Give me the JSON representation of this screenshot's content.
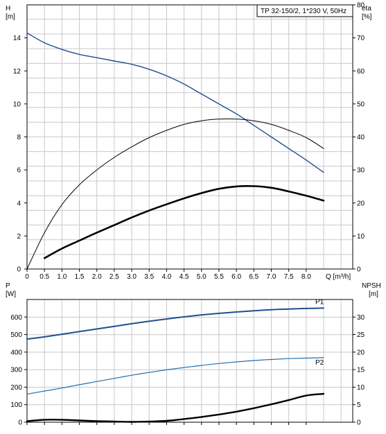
{
  "chart_data": [
    {
      "type": "line",
      "title": "TP 32-150/2, 1*230 V, 50Hz",
      "ylabel_left": [
        "H",
        "[m]"
      ],
      "ylabel_right": [
        "eta",
        "[%]"
      ],
      "xlabel": "Q [m³/h]",
      "xlim": [
        0,
        8.5
      ],
      "ylim_left": [
        0,
        16
      ],
      "ylim_right": [
        0,
        80
      ],
      "grid": true,
      "x_ticks": [
        0,
        0.5,
        1.0,
        1.5,
        2.0,
        2.5,
        3.0,
        3.5,
        4.0,
        4.5,
        5.0,
        5.5,
        6.0,
        6.5,
        7.0,
        7.5,
        8.0
      ],
      "x_tick_labels": [
        "0",
        "0.5",
        "1.0",
        "1.5",
        "2.0",
        "2.5",
        "3.0",
        "3.5",
        "4.0",
        "4.5",
        "5.0",
        "5.5",
        "6.0",
        "6.5",
        "7.0",
        "7.5",
        "8.0"
      ],
      "left_ticks": [
        0,
        2,
        4,
        6,
        8,
        10,
        12,
        14
      ],
      "right_ticks": [
        0,
        10,
        20,
        30,
        40,
        50,
        60,
        70,
        80
      ],
      "series": [
        {
          "axis": "left",
          "color": "#1f4e8c",
          "x": [
            0,
            0.5,
            1.0,
            1.5,
            2.0,
            2.5,
            3.0,
            3.5,
            4.0,
            4.5,
            5.0,
            5.5,
            6.0,
            6.5,
            7.0,
            7.5,
            8.0,
            8.5
          ],
          "values": [
            14.3,
            13.7,
            13.3,
            13.0,
            12.8,
            12.6,
            12.4,
            12.1,
            11.7,
            11.2,
            10.6,
            10.0,
            9.4,
            8.7,
            8.0,
            7.3,
            6.6,
            5.85
          ]
        },
        {
          "axis": "right",
          "color": "#000000",
          "x": [
            0,
            0.5,
            1.0,
            1.5,
            2.0,
            2.5,
            3.0,
            3.5,
            4.0,
            4.5,
            5.0,
            5.5,
            6.0,
            6.5,
            7.0,
            7.5,
            8.0,
            8.5
          ],
          "values": [
            0,
            11,
            19.5,
            25.5,
            30,
            33.8,
            37,
            39.8,
            42,
            43.8,
            44.9,
            45.4,
            45.4,
            44.9,
            43.8,
            42,
            39.8,
            36.5
          ]
        },
        {
          "axis": "right",
          "color": "#000000",
          "x": [
            0.5,
            1.0,
            1.5,
            2.0,
            2.5,
            3.0,
            3.5,
            4.0,
            4.5,
            5.0,
            5.5,
            6.0,
            6.5,
            7.0,
            7.5,
            8.0,
            8.5
          ],
          "values": [
            3.3,
            6.2,
            8.6,
            11.0,
            13.3,
            15.6,
            17.7,
            19.6,
            21.4,
            23.0,
            24.3,
            25.0,
            25.1,
            24.6,
            23.5,
            22.2,
            20.7
          ]
        }
      ]
    },
    {
      "type": "line",
      "ylabel_left": [
        "P",
        "[W]"
      ],
      "ylabel_right": [
        "NPSH",
        "[m]"
      ],
      "xlim": [
        0,
        8.5
      ],
      "ylim_left": [
        0,
        700
      ],
      "ylim_right": [
        0,
        35
      ],
      "grid": true,
      "left_ticks": [
        0,
        100,
        200,
        300,
        400,
        500,
        600
      ],
      "right_ticks": [
        0,
        5,
        10,
        15,
        20,
        25,
        30
      ],
      "series": [
        {
          "name": "P1",
          "axis": "left",
          "color": "#1f4e8c",
          "x": [
            0,
            0.5,
            1.0,
            1.5,
            2.0,
            2.5,
            3.0,
            3.5,
            4.0,
            4.5,
            5.0,
            5.5,
            6.0,
            6.5,
            7.0,
            7.5,
            8.0,
            8.5
          ],
          "values": [
            474,
            487,
            502,
            517,
            532,
            547,
            562,
            576,
            589,
            601,
            612,
            621,
            629,
            636,
            642,
            646,
            649,
            651
          ]
        },
        {
          "name": "P2",
          "axis": "left",
          "color": "#1f6fb0",
          "x": [
            0,
            0.5,
            1.0,
            1.5,
            2.0,
            2.5,
            3.0,
            3.5,
            4.0,
            4.5,
            5.0,
            5.5,
            6.0,
            6.5,
            7.0,
            7.5,
            8.0,
            8.5
          ],
          "values": [
            160,
            178,
            195,
            214,
            232,
            250,
            268,
            284,
            299,
            312,
            324,
            335,
            344,
            352,
            358,
            363,
            366,
            368
          ]
        },
        {
          "axis": "right",
          "color": "#000000",
          "x": [
            0,
            0.5,
            1.0,
            1.5,
            2.0,
            2.5,
            3.0,
            3.5,
            4.0,
            4.5,
            5.0,
            5.5,
            6.0,
            6.5,
            7.0,
            7.5,
            8.0,
            8.5
          ],
          "values": [
            0.3,
            0.7,
            0.7,
            0.5,
            0.3,
            0.2,
            0.1,
            0.2,
            0.4,
            0.9,
            1.5,
            2.2,
            3.0,
            4.0,
            5.1,
            6.3,
            7.6,
            8.1
          ]
        }
      ]
    }
  ]
}
